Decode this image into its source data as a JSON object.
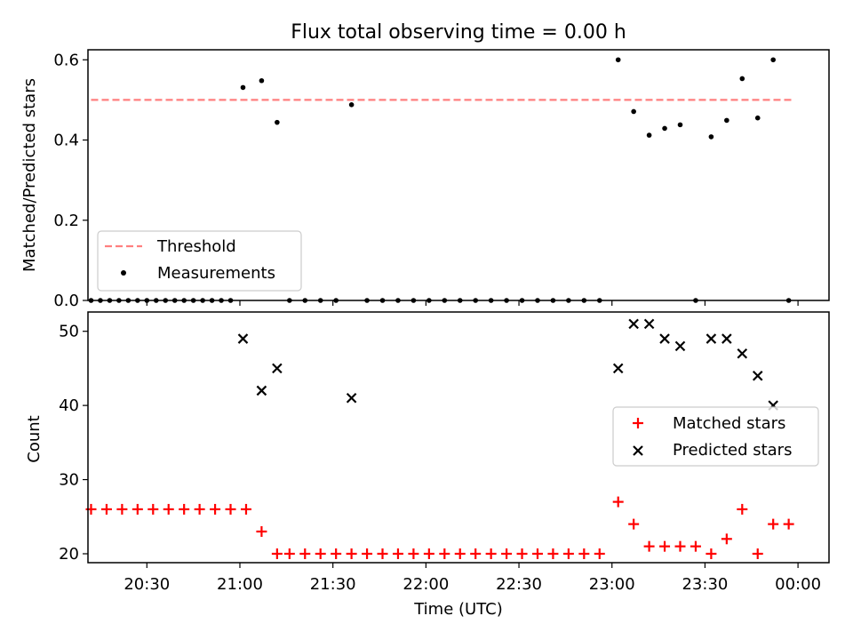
{
  "title": "Flux total observing time = 0.00 h",
  "colors": {
    "threshold": "#ff7f7f",
    "measurements": "#000000",
    "matched": "#ff0000",
    "predicted": "#000000",
    "axes": "#000000",
    "background": "#ffffff"
  },
  "chart_data": [
    {
      "type": "scatter",
      "title": "Flux total observing time = 0.00 h",
      "xlabel": "",
      "ylabel": "Matched/Predicted stars",
      "x_unit": "minutes",
      "xlim": [
        "20:11",
        "00:10"
      ],
      "ylim": [
        0,
        0.625
      ],
      "yticks": [
        0.0,
        0.2,
        0.4,
        0.6
      ],
      "ytick_labels": [
        "0.0",
        "0.2",
        "0.4",
        "0.6"
      ],
      "grid": false,
      "legend_position": "lower-left",
      "threshold": {
        "name": "Threshold",
        "value": 0.5,
        "x_range": [
          "20:12",
          "23:58"
        ],
        "style": "dashed"
      },
      "series": [
        {
          "name": "Measurements",
          "marker": "dot",
          "points": [
            [
              "20:12",
              0.0
            ],
            [
              "20:15",
              0.0
            ],
            [
              "20:18",
              0.0
            ],
            [
              "20:21",
              0.0
            ],
            [
              "20:24",
              0.0
            ],
            [
              "20:27",
              0.0
            ],
            [
              "20:30",
              0.0
            ],
            [
              "20:33",
              0.0
            ],
            [
              "20:36",
              0.0
            ],
            [
              "20:39",
              0.0
            ],
            [
              "20:42",
              0.0
            ],
            [
              "20:45",
              0.0
            ],
            [
              "20:48",
              0.0
            ],
            [
              "20:51",
              0.0
            ],
            [
              "20:54",
              0.0
            ],
            [
              "20:57",
              0.0
            ],
            [
              "21:01",
              0.531
            ],
            [
              "21:07",
              0.548
            ],
            [
              "21:12",
              0.444
            ],
            [
              "21:16",
              0.0
            ],
            [
              "21:21",
              0.0
            ],
            [
              "21:26",
              0.0
            ],
            [
              "21:31",
              0.0
            ],
            [
              "21:36",
              0.488
            ],
            [
              "21:41",
              0.0
            ],
            [
              "21:46",
              0.0
            ],
            [
              "21:51",
              0.0
            ],
            [
              "21:56",
              0.0
            ],
            [
              "22:01",
              0.0
            ],
            [
              "22:06",
              0.0
            ],
            [
              "22:11",
              0.0
            ],
            [
              "22:16",
              0.0
            ],
            [
              "22:21",
              0.0
            ],
            [
              "22:26",
              0.0
            ],
            [
              "22:31",
              0.0
            ],
            [
              "22:36",
              0.0
            ],
            [
              "22:41",
              0.0
            ],
            [
              "22:46",
              0.0
            ],
            [
              "22:51",
              0.0
            ],
            [
              "22:56",
              0.0
            ],
            [
              "23:02",
              0.6
            ],
            [
              "23:07",
              0.471
            ],
            [
              "23:12",
              0.412
            ],
            [
              "23:17",
              0.429
            ],
            [
              "23:22",
              0.438
            ],
            [
              "23:27",
              0.0
            ],
            [
              "23:32",
              0.408
            ],
            [
              "23:37",
              0.449
            ],
            [
              "23:42",
              0.553
            ],
            [
              "23:47",
              0.455
            ],
            [
              "23:52",
              0.6
            ],
            [
              "23:57",
              0.0
            ]
          ]
        }
      ]
    },
    {
      "type": "scatter",
      "title": "",
      "xlabel": "Time (UTC)",
      "ylabel": "Count",
      "x_unit": "minutes",
      "xlim": [
        "20:11",
        "00:10"
      ],
      "xticks": [
        "20:30",
        "21:00",
        "21:30",
        "22:00",
        "22:30",
        "23:00",
        "23:30",
        "00:00"
      ],
      "ylim": [
        18.8,
        52.6
      ],
      "yticks": [
        20,
        30,
        40,
        50
      ],
      "ytick_labels": [
        "20",
        "30",
        "40",
        "50"
      ],
      "grid": false,
      "legend_position": "center-right",
      "series": [
        {
          "name": "Matched stars",
          "marker": "plus",
          "points": [
            [
              "20:12",
              26
            ],
            [
              "20:17",
              26
            ],
            [
              "20:22",
              26
            ],
            [
              "20:27",
              26
            ],
            [
              "20:32",
              26
            ],
            [
              "20:37",
              26
            ],
            [
              "20:42",
              26
            ],
            [
              "20:47",
              26
            ],
            [
              "20:52",
              26
            ],
            [
              "20:57",
              26
            ],
            [
              "21:02",
              26
            ],
            [
              "21:07",
              23
            ],
            [
              "21:12",
              20
            ],
            [
              "21:16",
              20
            ],
            [
              "21:21",
              20
            ],
            [
              "21:26",
              20
            ],
            [
              "21:31",
              20
            ],
            [
              "21:36",
              20
            ],
            [
              "21:41",
              20
            ],
            [
              "21:46",
              20
            ],
            [
              "21:51",
              20
            ],
            [
              "21:56",
              20
            ],
            [
              "22:01",
              20
            ],
            [
              "22:06",
              20
            ],
            [
              "22:11",
              20
            ],
            [
              "22:16",
              20
            ],
            [
              "22:21",
              20
            ],
            [
              "22:26",
              20
            ],
            [
              "22:31",
              20
            ],
            [
              "22:36",
              20
            ],
            [
              "22:41",
              20
            ],
            [
              "22:46",
              20
            ],
            [
              "22:51",
              20
            ],
            [
              "22:56",
              20
            ],
            [
              "23:02",
              27
            ],
            [
              "23:07",
              24
            ],
            [
              "23:12",
              21
            ],
            [
              "23:17",
              21
            ],
            [
              "23:22",
              21
            ],
            [
              "23:27",
              21
            ],
            [
              "23:32",
              20
            ],
            [
              "23:37",
              22
            ],
            [
              "23:42",
              26
            ],
            [
              "23:47",
              20
            ],
            [
              "23:52",
              24
            ],
            [
              "23:57",
              24
            ]
          ]
        },
        {
          "name": "Predicted stars",
          "marker": "x",
          "points": [
            [
              "21:01",
              49
            ],
            [
              "21:07",
              42
            ],
            [
              "21:12",
              45
            ],
            [
              "21:36",
              41
            ],
            [
              "23:02",
              45
            ],
            [
              "23:07",
              51
            ],
            [
              "23:12",
              51
            ],
            [
              "23:17",
              49
            ],
            [
              "23:22",
              48
            ],
            [
              "23:32",
              49
            ],
            [
              "23:37",
              49
            ],
            [
              "23:42",
              47
            ],
            [
              "23:47",
              44
            ],
            [
              "23:52",
              40
            ]
          ]
        }
      ]
    }
  ]
}
